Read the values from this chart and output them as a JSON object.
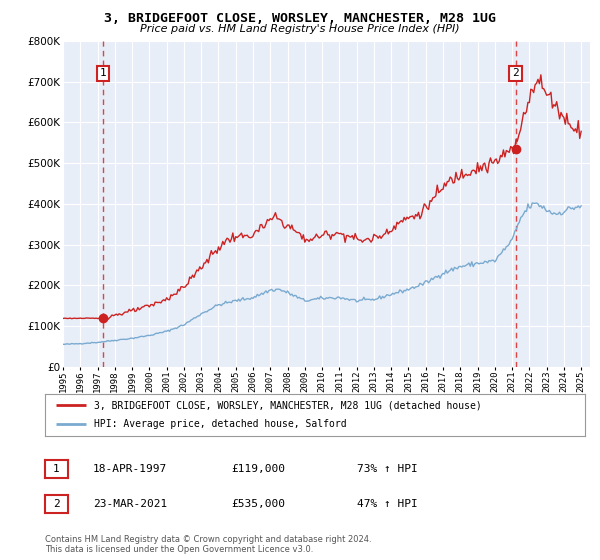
{
  "title": "3, BRIDGEFOOT CLOSE, WORSLEY, MANCHESTER, M28 1UG",
  "subtitle": "Price paid vs. HM Land Registry's House Price Index (HPI)",
  "legend_line1": "3, BRIDGEFOOT CLOSE, WORSLEY, MANCHESTER, M28 1UG (detached house)",
  "legend_line2": "HPI: Average price, detached house, Salford",
  "annotation1_date": "18-APR-1997",
  "annotation1_price": "£119,000",
  "annotation1_hpi": "73% ↑ HPI",
  "annotation2_date": "23-MAR-2021",
  "annotation2_price": "£535,000",
  "annotation2_hpi": "47% ↑ HPI",
  "footer": "Contains HM Land Registry data © Crown copyright and database right 2024.\nThis data is licensed under the Open Government Licence v3.0.",
  "hpi_color": "#7aaad0",
  "property_color": "#cc2222",
  "vline_color": "#dd4444",
  "dot_color": "#cc2222",
  "plot_bg": "#e8eef8",
  "grid_color": "#ffffff",
  "ylim": [
    0,
    800000
  ],
  "sale1_x": 1997.3,
  "sale1_y": 119000,
  "sale2_x": 2021.2,
  "sale2_y": 535000,
  "xticks": [
    1995,
    1996,
    1997,
    1998,
    1999,
    2000,
    2001,
    2002,
    2003,
    2004,
    2005,
    2006,
    2007,
    2008,
    2009,
    2010,
    2011,
    2012,
    2013,
    2014,
    2015,
    2016,
    2017,
    2018,
    2019,
    2020,
    2021,
    2022,
    2023,
    2024,
    2025
  ],
  "yticks": [
    0,
    100000,
    200000,
    300000,
    400000,
    500000,
    600000,
    700000,
    800000
  ]
}
